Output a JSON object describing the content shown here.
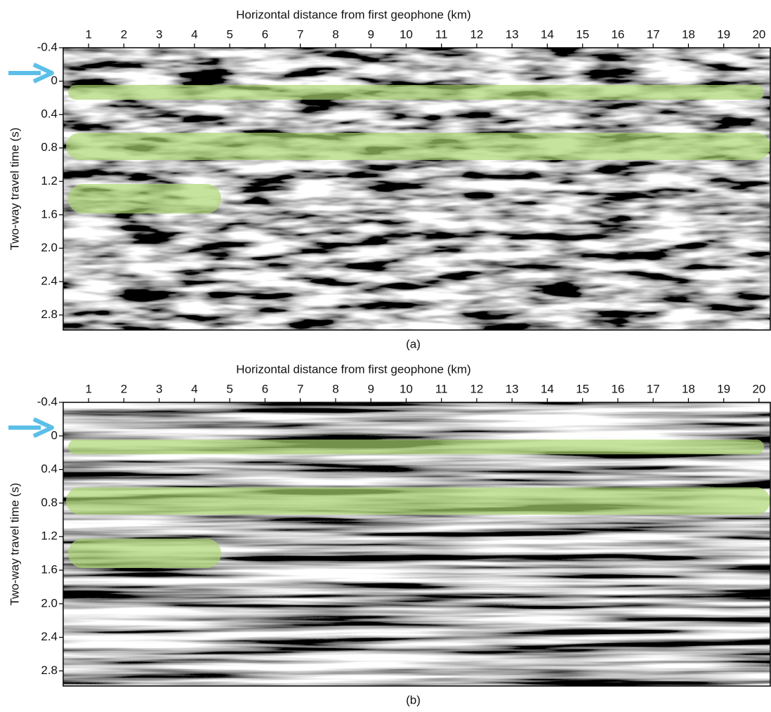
{
  "chart_data": [
    {
      "type": "image",
      "x_label": "Horizontal distance from first geophone (km)",
      "y_label": "Two-way travel time (s)",
      "caption": "(a)",
      "xlim": [
        0.28,
        20.32
      ],
      "xticks": [
        1,
        2,
        3,
        4,
        5,
        6,
        7,
        8,
        9,
        10,
        11,
        12,
        13,
        14,
        15,
        16,
        17,
        18,
        19,
        20
      ],
      "ylim": [
        -0.4,
        2.98
      ],
      "y_inverted": true,
      "yticks": [
        -0.4,
        0,
        0.4,
        0.8,
        1.2,
        1.6,
        {
          "value": 2,
          "label": "2.0"
        },
        2.4,
        2.8
      ]
    },
    {
      "type": "image",
      "x_label": "Horizontal distance from first geophone (km)",
      "y_label": "Two-way travel time (s)",
      "caption": "(b)",
      "xlim": [
        0.28,
        20.32
      ],
      "xticks": [
        1,
        2,
        3,
        4,
        5,
        6,
        7,
        8,
        9,
        10,
        11,
        12,
        13,
        14,
        15,
        16,
        17,
        18,
        19,
        20
      ],
      "ylim": [
        -0.4,
        2.98
      ],
      "y_inverted": true,
      "yticks": [
        -0.4,
        0,
        0.4,
        0.8,
        1.2,
        1.6,
        {
          "value": 2,
          "label": "2.0"
        },
        2.4,
        2.8
      ]
    }
  ]
}
